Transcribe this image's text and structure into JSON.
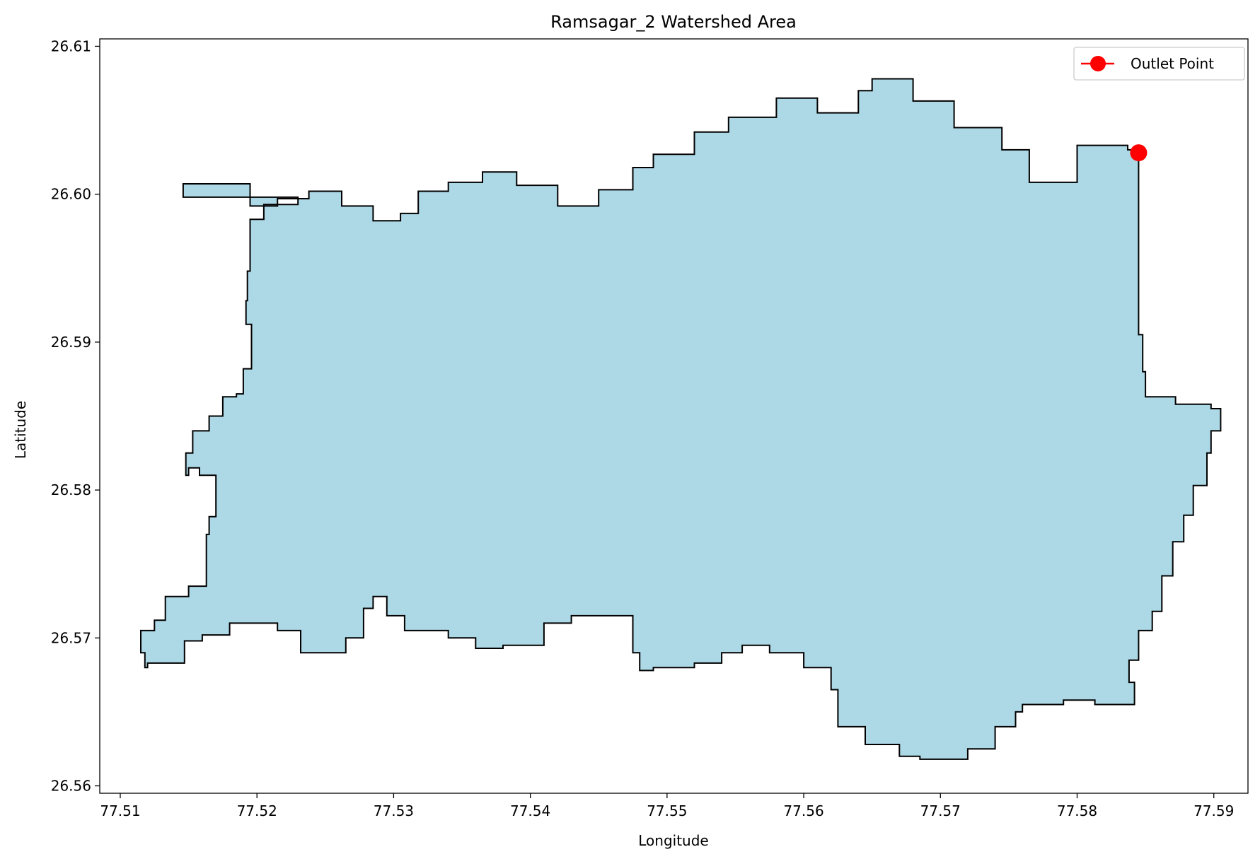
{
  "chart_data": {
    "type": "area",
    "title": "Ramsagar_2 Watershed Area",
    "xlabel": "Longitude",
    "ylabel": "Latitude",
    "xlim": [
      77.5085,
      77.5925
    ],
    "ylim": [
      26.5595,
      26.6105
    ],
    "xticks": [
      77.51,
      77.52,
      77.53,
      77.54,
      77.55,
      77.56,
      77.57,
      77.58,
      77.59
    ],
    "yticks": [
      26.56,
      26.57,
      26.58,
      26.59,
      26.6,
      26.61
    ],
    "xtick_labels": [
      "77.51",
      "77.52",
      "77.53",
      "77.54",
      "77.55",
      "77.56",
      "77.57",
      "77.58",
      "77.59"
    ],
    "ytick_labels": [
      "26.56",
      "26.57",
      "26.58",
      "26.59",
      "26.60",
      "26.61"
    ],
    "grid": false,
    "legend_position": "top-right",
    "series": [
      {
        "name": "",
        "kind": "polygon",
        "fill": "#add8e6",
        "edge": "#000000",
        "points": [
          [
            77.5146,
            26.6007
          ],
          [
            77.5172,
            26.6007
          ],
          [
            77.5195,
            26.5992
          ],
          [
            77.5215,
            26.5997
          ],
          [
            77.5238,
            26.6002
          ],
          [
            77.5262,
            26.5992
          ],
          [
            77.5285,
            26.5982
          ],
          [
            77.5305,
            26.5987
          ],
          [
            77.5318,
            26.6002
          ],
          [
            77.534,
            26.6008
          ],
          [
            77.5365,
            26.6015
          ],
          [
            77.539,
            26.6006
          ],
          [
            77.542,
            26.5992
          ],
          [
            77.545,
            26.6003
          ],
          [
            77.5475,
            26.6018
          ],
          [
            77.549,
            26.6027
          ],
          [
            77.552,
            26.6042
          ],
          [
            77.5545,
            26.6052
          ],
          [
            77.558,
            26.6065
          ],
          [
            77.561,
            26.6055
          ],
          [
            77.564,
            26.607
          ],
          [
            77.565,
            26.6078
          ],
          [
            77.568,
            26.6063
          ],
          [
            77.571,
            26.6045
          ],
          [
            77.5745,
            26.603
          ],
          [
            77.5765,
            26.6008
          ],
          [
            77.58,
            26.6033
          ],
          [
            77.5837,
            26.603
          ],
          [
            77.5845,
            26.6028
          ],
          [
            77.5845,
            26.5905
          ],
          [
            77.5848,
            26.588
          ],
          [
            77.585,
            26.5863
          ],
          [
            77.5872,
            26.5858
          ],
          [
            77.5898,
            26.5855
          ],
          [
            77.5905,
            26.584
          ],
          [
            77.5898,
            26.5825
          ],
          [
            77.5895,
            26.5803
          ],
          [
            77.5885,
            26.5783
          ],
          [
            77.5878,
            26.5765
          ],
          [
            77.587,
            26.5742
          ],
          [
            77.5862,
            26.5718
          ],
          [
            77.5855,
            26.5705
          ],
          [
            77.5845,
            26.5685
          ],
          [
            77.5838,
            26.567
          ],
          [
            77.5842,
            26.5655
          ],
          [
            77.583,
            26.5655
          ],
          [
            77.5813,
            26.5658
          ],
          [
            77.579,
            26.5655
          ],
          [
            77.576,
            26.565
          ],
          [
            77.5755,
            26.564
          ],
          [
            77.574,
            26.5625
          ],
          [
            77.572,
            26.5618
          ],
          [
            77.57,
            26.5618
          ],
          [
            77.5685,
            26.562
          ],
          [
            77.567,
            26.5628
          ],
          [
            77.5645,
            26.564
          ],
          [
            77.5625,
            26.5665
          ],
          [
            77.562,
            26.568
          ],
          [
            77.56,
            26.569
          ],
          [
            77.5575,
            26.5695
          ],
          [
            77.5555,
            26.569
          ],
          [
            77.554,
            26.5683
          ],
          [
            77.552,
            26.568
          ],
          [
            77.549,
            26.5678
          ],
          [
            77.548,
            26.569
          ],
          [
            77.5475,
            26.5715
          ],
          [
            77.545,
            26.5715
          ],
          [
            77.543,
            26.571
          ],
          [
            77.541,
            26.5695
          ],
          [
            77.538,
            26.5693
          ],
          [
            77.536,
            26.57
          ],
          [
            77.534,
            26.5705
          ],
          [
            77.5322,
            26.5705
          ],
          [
            77.5308,
            26.5715
          ],
          [
            77.5295,
            26.5728
          ],
          [
            77.5285,
            26.572
          ],
          [
            77.5278,
            26.57
          ],
          [
            77.5265,
            26.569
          ],
          [
            77.5245,
            26.569
          ],
          [
            77.5232,
            26.5705
          ],
          [
            77.5215,
            26.571
          ],
          [
            77.5195,
            26.571
          ],
          [
            77.518,
            26.5702
          ],
          [
            77.516,
            26.5698
          ],
          [
            77.5147,
            26.5683
          ],
          [
            77.512,
            26.568
          ],
          [
            77.5118,
            26.569
          ],
          [
            77.5115,
            26.5705
          ],
          [
            77.5125,
            26.5712
          ],
          [
            77.5133,
            26.5728
          ],
          [
            77.515,
            26.5735
          ],
          [
            77.5163,
            26.5752
          ],
          [
            77.5163,
            26.577
          ],
          [
            77.5165,
            26.5782
          ],
          [
            77.517,
            26.5797
          ],
          [
            77.517,
            26.581
          ],
          [
            77.5158,
            26.5815
          ],
          [
            77.515,
            26.581
          ],
          [
            77.5148,
            26.5825
          ],
          [
            77.5153,
            26.584
          ],
          [
            77.5165,
            26.585
          ],
          [
            77.5175,
            26.5863
          ],
          [
            77.5185,
            26.5865
          ],
          [
            77.519,
            26.5882
          ],
          [
            77.5196,
            26.5895
          ],
          [
            77.5196,
            26.5912
          ],
          [
            77.5192,
            26.5928
          ],
          [
            77.5193,
            26.5948
          ],
          [
            77.5195,
            26.5968
          ],
          [
            77.5195,
            26.5983
          ],
          [
            77.5205,
            26.5993
          ],
          [
            77.523,
            26.5998
          ]
        ]
      },
      {
        "name": "Outlet Point",
        "kind": "marker",
        "color": "#ff0000",
        "points": [
          [
            77.5845,
            26.6028
          ]
        ]
      }
    ]
  }
}
